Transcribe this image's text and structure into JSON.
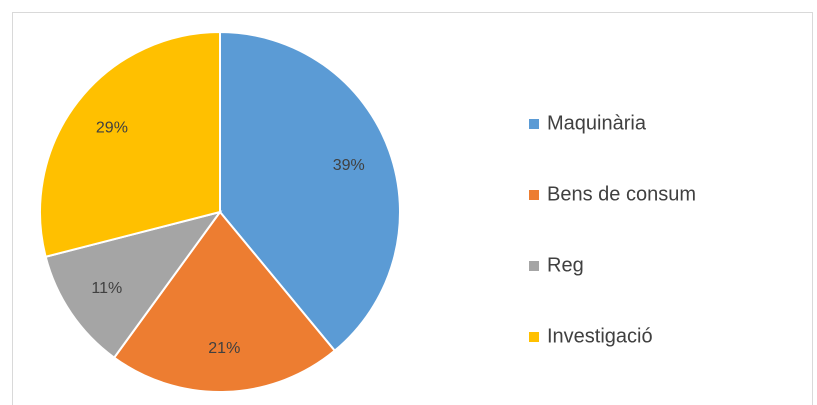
{
  "chart_data": {
    "type": "pie",
    "categories": [
      "Maquinària",
      "Bens de consum",
      "Reg",
      "Investigació"
    ],
    "values": [
      39,
      21,
      11,
      29
    ],
    "value_labels": [
      "39%",
      "21%",
      "11%",
      "29%"
    ],
    "colors": [
      "#5b9bd5",
      "#ed7d31",
      "#a5a5a5",
      "#ffc000"
    ],
    "legend": "right"
  }
}
